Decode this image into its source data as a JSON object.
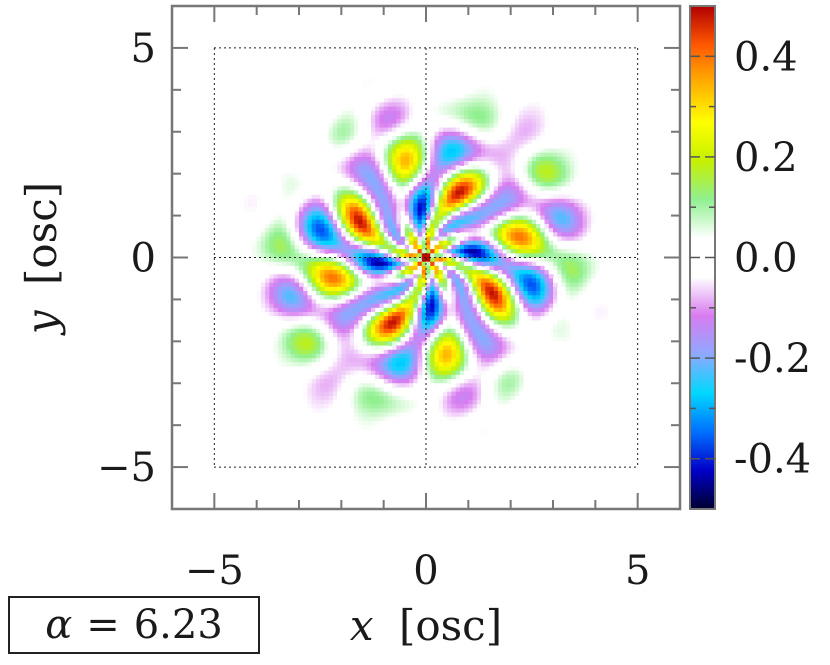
{
  "chart_data": {
    "type": "heatmap",
    "xlabel": {
      "var": "x",
      "unit": "[osc]"
    },
    "ylabel": {
      "var": "y",
      "unit": "[osc]"
    },
    "xlim": [
      -6,
      6
    ],
    "ylim": [
      -6,
      6
    ],
    "x_ticks": [
      -5,
      0,
      5
    ],
    "y_ticks": [
      -5,
      0,
      5
    ],
    "x_tick_labels": [
      "−5",
      "0",
      "5"
    ],
    "y_tick_labels": [
      "−5",
      "0",
      "5"
    ],
    "grid": {
      "dotted_lines": [
        -5,
        0,
        5
      ]
    },
    "colorbar": {
      "range": [
        -0.5,
        0.5
      ],
      "ticks": [
        0.4,
        0.2,
        0.0,
        -0.2,
        -0.4
      ],
      "tick_labels": [
        "0.4",
        "0.2",
        "0.0",
        "-0.2",
        "-0.4"
      ],
      "colors": [
        "#000030",
        "#0000c8",
        "#0070ff",
        "#00d8ff",
        "#8fa8ff",
        "#d87cf0",
        "#ffffff",
        "#ffffff",
        "#90f090",
        "#c6f000",
        "#ffff00",
        "#ffb000",
        "#ff5800",
        "#b00000"
      ]
    },
    "pattern": {
      "description_values": "central interference pattern within radius ~3.5 osc",
      "extent_radius": 3.6,
      "amplitude_peak": 0.45
    }
  },
  "parameter": {
    "symbol": "α",
    "equals": "=",
    "value": "6.23"
  }
}
